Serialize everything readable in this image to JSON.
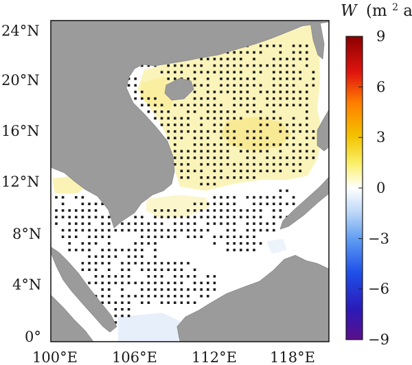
{
  "chart_data": {
    "type": "heatmap",
    "x_ticks": [
      "100°E",
      "106°E",
      "112°E",
      "118°E"
    ],
    "y_ticks": [
      "24°N",
      "20°N",
      "16°N",
      "12°N",
      "8°N",
      "4°N",
      "0°"
    ],
    "x_range": [
      100,
      121
    ],
    "y_range": [
      0,
      25
    ],
    "colorbar": {
      "label_italic": "W",
      "label_pre": "(m",
      "label_sup": "2",
      "label_post": "a)",
      "ticks": [
        "9",
        "6",
        "3",
        "0",
        "−3",
        "−6",
        "−9"
      ],
      "range": [
        -9,
        9
      ]
    },
    "colors": {
      "land": "#9b9b9b",
      "positive_field": "#fbf3b6",
      "positive_core": "#f7e890",
      "negative_field": "#e3edf9",
      "dots": "#1a1a1a"
    }
  }
}
